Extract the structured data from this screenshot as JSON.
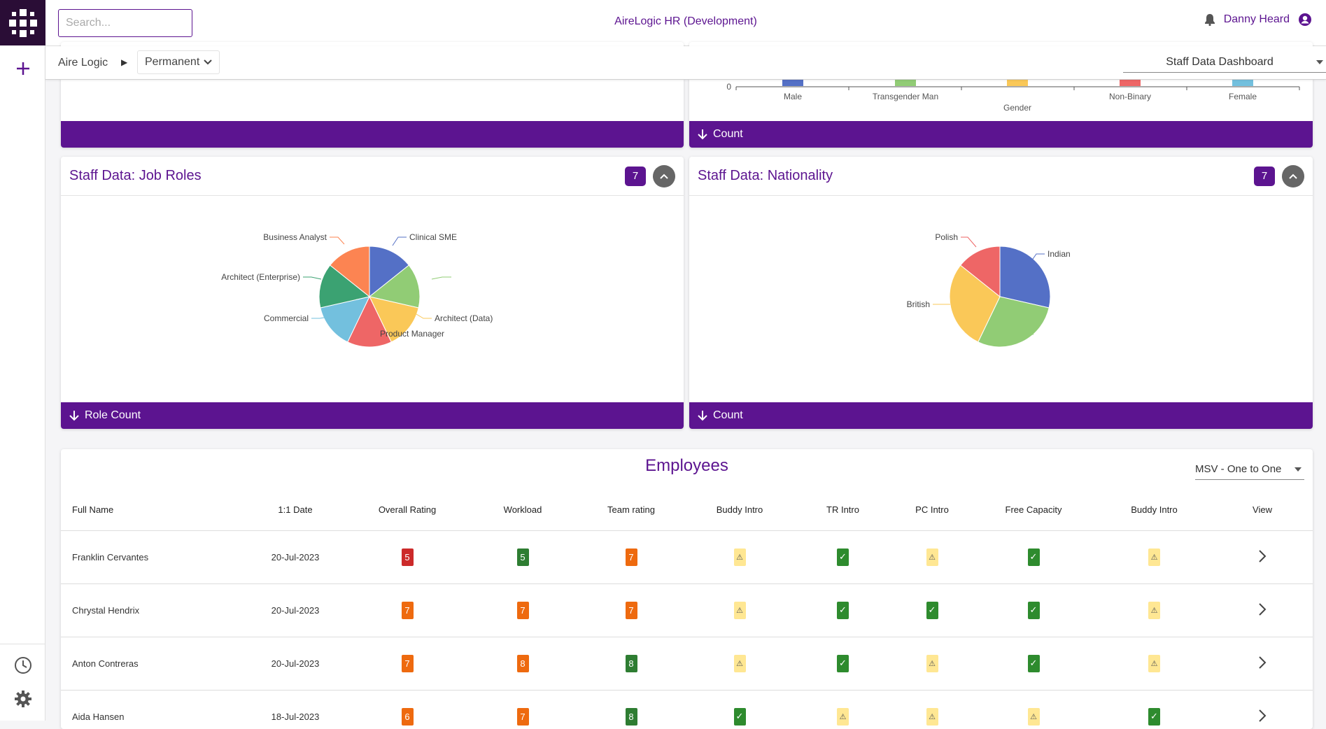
{
  "topbar": {
    "search_placeholder": "Search...",
    "app_title": "AireLogic HR (Development)",
    "user_name": "Danny Heard"
  },
  "breadcrumb": {
    "root": "Aire Logic",
    "current": "Permanent"
  },
  "dashboard_select": "Staff Data Dashboard",
  "gender_card": {
    "footer_label": "Count",
    "xlabel": "Gender",
    "y_zero": "0",
    "categories": [
      "Male",
      "Transgender Man",
      "",
      "Non-Binary",
      "Female"
    ]
  },
  "top_left_card": {
    "footer_label": ""
  },
  "job_roles_card": {
    "title": "Staff Data: Job Roles",
    "count": "7",
    "footer_label": "Role Count"
  },
  "nationality_card": {
    "title": "Staff Data: Nationality",
    "count": "7",
    "footer_label": "Count"
  },
  "chart_data": [
    {
      "type": "bar",
      "xlabel": "Gender",
      "categories": [
        "Male",
        "Transgender Man",
        "",
        "Non-Binary",
        "Female"
      ],
      "colors": [
        "#5470c6",
        "#91cc75",
        "#fac858",
        "#ee6666",
        "#73c0de"
      ]
    },
    {
      "type": "pie",
      "title": "Staff Data: Job Roles",
      "labels": [
        "Clinical SME",
        "",
        "Architect (Data)",
        "Product Manager",
        "Commercial",
        "Architect (Enterprise)",
        "Business Analyst"
      ],
      "values": [
        1,
        1,
        1,
        1,
        1,
        1,
        1
      ],
      "colors": [
        "#5470c6",
        "#91cc75",
        "#fac858",
        "#ee6666",
        "#73c0de",
        "#3ba272",
        "#fc8452"
      ]
    },
    {
      "type": "pie",
      "title": "Staff Data: Nationality",
      "labels": [
        "Indian",
        "",
        "British",
        "Polish"
      ],
      "values": [
        2,
        2,
        2,
        1
      ],
      "colors": [
        "#5470c6",
        "#91cc75",
        "#fac858",
        "#ee6666"
      ]
    }
  ],
  "employees": {
    "title": "Employees",
    "filter": "MSV - One to One",
    "columns": [
      "Full Name",
      "1:1 Date",
      "Overall Rating",
      "Workload",
      "Team rating",
      "Buddy Intro",
      "TR Intro",
      "PC Intro",
      "Free Capacity",
      "Buddy Intro",
      "View"
    ],
    "rows": [
      {
        "name": "Franklin Cervantes",
        "date": "20-Jul-2023",
        "overall": "5",
        "overall_status": "red",
        "workload": "5",
        "workload_status": "green",
        "team": "7",
        "team_status": "orange",
        "buddy_intro": "warning",
        "tr_intro": "done",
        "pc_intro": "warning",
        "free_capacity": "done",
        "buddy_intro_2": "warning"
      },
      {
        "name": "Chrystal Hendrix",
        "date": "20-Jul-2023",
        "overall": "7",
        "overall_status": "orange",
        "workload": "7",
        "workload_status": "orange",
        "team": "7",
        "team_status": "orange",
        "buddy_intro": "warning",
        "tr_intro": "done",
        "pc_intro": "done",
        "free_capacity": "done",
        "buddy_intro_2": "warning"
      },
      {
        "name": "Anton Contreras",
        "date": "20-Jul-2023",
        "overall": "7",
        "overall_status": "orange",
        "workload": "8",
        "workload_status": "orange",
        "team": "8",
        "team_status": "green",
        "buddy_intro": "warning",
        "tr_intro": "done",
        "pc_intro": "warning",
        "free_capacity": "done",
        "buddy_intro_2": "warning"
      },
      {
        "name": "Aida Hansen",
        "date": "18-Jul-2023",
        "overall": "6",
        "overall_status": "orange",
        "workload": "7",
        "workload_status": "orange",
        "team": "8",
        "team_status": "green",
        "buddy_intro": "done",
        "tr_intro": "warning",
        "pc_intro": "warning",
        "free_capacity": "warning",
        "buddy_intro_2": "done"
      }
    ]
  },
  "colors": {
    "accent": "#5c1490",
    "red": "#cc2a2a",
    "orange": "#ee6a0f",
    "green": "#2e7d32",
    "warning_bg": "#ffe793"
  }
}
